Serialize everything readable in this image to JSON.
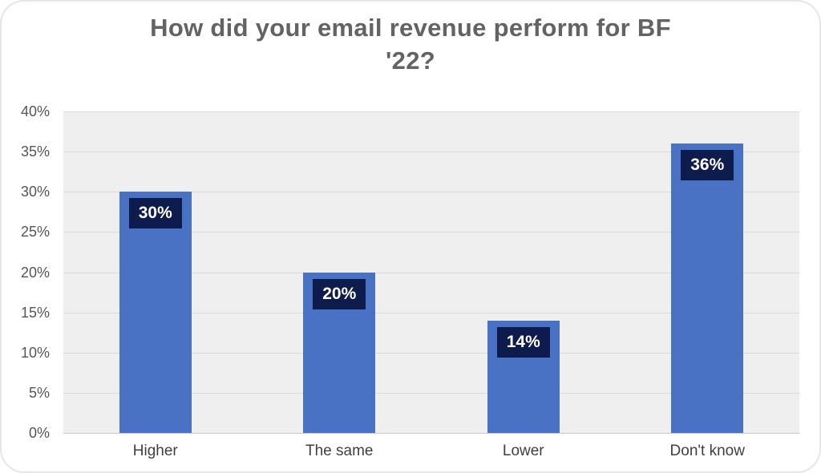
{
  "chart_data": {
    "type": "bar",
    "title": "How did your email revenue perform for BF '22?",
    "title_lines": [
      "How did your email revenue perform for BF",
      "'22?"
    ],
    "categories": [
      "Higher",
      "The same",
      "Lower",
      "Don't know"
    ],
    "values": [
      30,
      20,
      14,
      36
    ],
    "data_labels": [
      "30%",
      "20%",
      "14%",
      "36%"
    ],
    "xlabel": "",
    "ylabel": "",
    "ylim": [
      0,
      40
    ],
    "ytick_step": 5,
    "yticks": [
      "0%",
      "5%",
      "10%",
      "15%",
      "20%",
      "25%",
      "30%",
      "35%",
      "40%"
    ],
    "grid": true,
    "legend": "none",
    "colors": {
      "bar": "#4a72c4",
      "data_label_bg": "#0d1b4d",
      "data_label_text": "#ffffff",
      "plot_bg": "#efefef",
      "gridline": "#d9d9d9",
      "baseline": "#c9c9c9",
      "title_text": "#636363",
      "tick_text": "#565656",
      "x_label_text": "#3f3f3f"
    }
  }
}
